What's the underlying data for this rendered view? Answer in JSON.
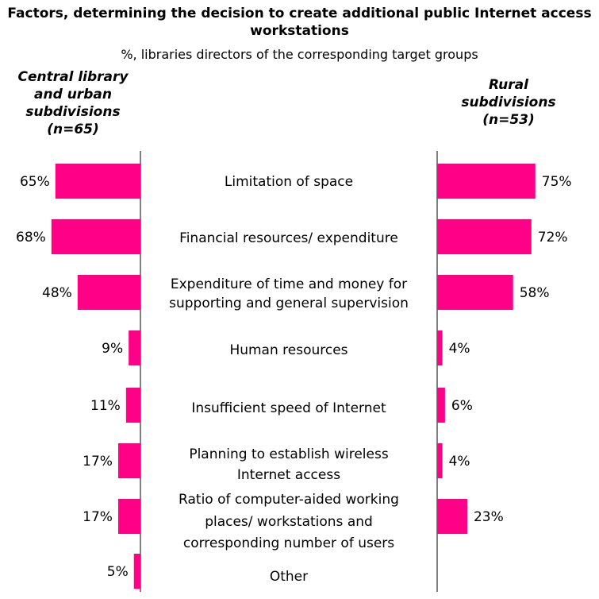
{
  "chart_data": {
    "type": "bar",
    "title": "Factors, determining the decision to create additional public Internet access workstations",
    "subtitle": "%, libraries directors of the corresponding target groups",
    "categories": [
      "Limitation of space",
      "Financial resources/ expenditure",
      "Expenditure of time and money for supporting and general supervision",
      "Human resources",
      "Insufficient speed of Internet",
      "Planning to establish wireless Internet access",
      "Ratio of computer-aided working places/ workstations and corresponding number of users",
      "Other"
    ],
    "series": [
      {
        "name": "Central library and urban subdivisions (n=65)",
        "values": [
          65,
          68,
          48,
          9,
          11,
          17,
          17,
          5
        ],
        "labels": [
          "65%",
          "68%",
          "48%",
          "9%",
          "11%",
          "17%",
          "17%",
          "5%"
        ]
      },
      {
        "name": "Rural subdivisions (n=53)",
        "values": [
          75,
          72,
          58,
          4,
          6,
          4,
          23,
          null
        ],
        "labels": [
          "75%",
          "72%",
          "58%",
          "4%",
          "6%",
          "4%",
          "23%",
          ""
        ]
      }
    ],
    "color": "#ff0086",
    "xlim": [
      0,
      100
    ]
  }
}
